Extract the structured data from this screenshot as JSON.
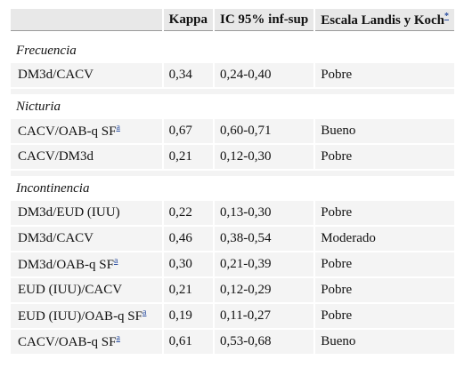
{
  "table": {
    "header": [
      "Kappa",
      "IC 95% inf-sup",
      "Escala Landis y Koch"
    ],
    "header_note": "*",
    "sections": [
      {
        "title": "Frecuencia",
        "rows": [
          {
            "label": "DM3d/CACV",
            "kappa": "0,34",
            "ic": "0,24-0,40",
            "escala": "Pobre"
          }
        ]
      },
      {
        "title": "Nicturia",
        "rows": [
          {
            "label": "CACV/OAB-q SF",
            "note": "a",
            "kappa": "0,67",
            "ic": "0,60-0,71",
            "escala": "Bueno"
          },
          {
            "label": "CACV/DM3d",
            "kappa": "0,21",
            "ic": "0,12-0,30",
            "escala": "Pobre"
          }
        ]
      },
      {
        "title": "Incontinencia",
        "rows": [
          {
            "label": "DM3d/EUD (IUU)",
            "kappa": "0,22",
            "ic": "0,13-0,30",
            "escala": "Pobre"
          },
          {
            "label": "DM3d/CACV",
            "kappa": "0,46",
            "ic": "0,38-0,54",
            "escala": "Moderado"
          },
          {
            "label": "DM3d/OAB-q SF",
            "note": "a",
            "kappa": "0,30",
            "ic": "0,21-0,39",
            "escala": "Pobre"
          },
          {
            "label": "EUD (IUU)/CACV",
            "kappa": "0,21",
            "ic": "0,12-0,29",
            "escala": "Pobre"
          },
          {
            "label": "EUD (IUU)/OAB-q SF",
            "note": "a",
            "kappa": "0,19",
            "ic": "0,11-0,27",
            "escala": "Pobre"
          },
          {
            "label": "CACV/OAB-q SF",
            "note": "a",
            "kappa": "0,61",
            "ic": "0,53-0,68",
            "escala": "Bueno"
          }
        ]
      }
    ]
  }
}
